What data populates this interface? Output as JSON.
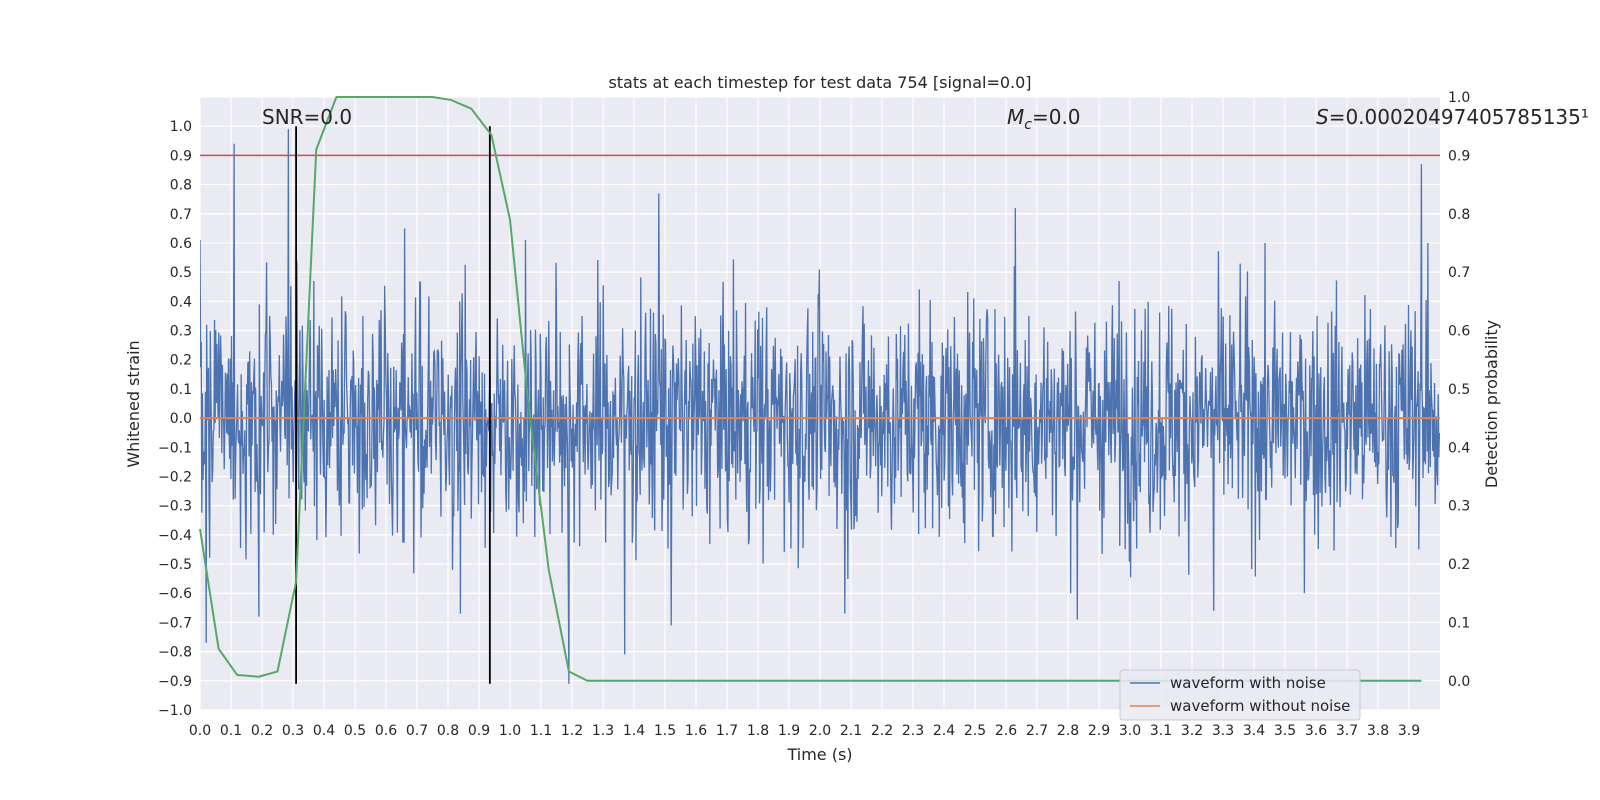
{
  "chart_data": {
    "type": "line",
    "title": "stats at each timestep for test data 754 [signal=0.0]",
    "xlabel": "Time (s)",
    "ylabel": "Whitened strain",
    "y2label": "Detection probability",
    "xlim": [
      0.0,
      4.0
    ],
    "ylim": [
      -1.0,
      1.1
    ],
    "y2lim": [
      -0.05,
      1.0
    ],
    "x_ticks": [
      0.0,
      0.1,
      0.2,
      0.3,
      0.4,
      0.5,
      0.6,
      0.7,
      0.8,
      0.9,
      1.0,
      1.1,
      1.2,
      1.3,
      1.4,
      1.5,
      1.6,
      1.7,
      1.8,
      1.9,
      2.0,
      2.1,
      2.2,
      2.3,
      2.4,
      2.5,
      2.6,
      2.7,
      2.8,
      2.9,
      3.0,
      3.1,
      3.2,
      3.3,
      3.4,
      3.5,
      3.6,
      3.7,
      3.8,
      3.9
    ],
    "y_ticks": [
      -1.0,
      -0.9,
      -0.8,
      -0.7,
      -0.6,
      -0.5,
      -0.4,
      -0.3,
      -0.2,
      -0.1,
      0.0,
      0.1,
      0.2,
      0.3,
      0.4,
      0.5,
      0.6,
      0.7,
      0.8,
      0.9,
      1.0
    ],
    "y2_ticks": [
      0.0,
      0.1,
      0.2,
      0.3,
      0.4,
      0.5,
      0.6,
      0.7,
      0.8,
      0.9,
      1.0
    ],
    "annotations": {
      "snr": "SNR=0.0",
      "mc_symbol": "M",
      "mc_sub": "c",
      "mc_value": "=0.0",
      "s_symbol": "S",
      "s_value": "=0.00020497405785135¹"
    },
    "series": [
      {
        "name": "waveform with noise",
        "color": "#4c72b0",
        "axis": "left",
        "note": "dense whitened noise, roughly within -0.6..0.6 with spikes",
        "spikes": [
          {
            "x": 0.0,
            "y": 0.61
          },
          {
            "x": 0.02,
            "y": -0.77
          },
          {
            "x": 0.11,
            "y": 0.94
          },
          {
            "x": 0.19,
            "y": -0.68
          },
          {
            "x": 0.285,
            "y": 0.99
          },
          {
            "x": 0.31,
            "y": -0.8
          },
          {
            "x": 0.66,
            "y": 0.65
          },
          {
            "x": 0.84,
            "y": -0.67
          },
          {
            "x": 1.05,
            "y": 0.61
          },
          {
            "x": 1.19,
            "y": -0.91
          },
          {
            "x": 1.37,
            "y": -0.81
          },
          {
            "x": 1.48,
            "y": 0.77
          },
          {
            "x": 1.52,
            "y": -0.71
          },
          {
            "x": 2.08,
            "y": -0.67
          },
          {
            "x": 2.63,
            "y": 0.72
          },
          {
            "x": 2.83,
            "y": -0.69
          },
          {
            "x": 3.27,
            "y": -0.66
          },
          {
            "x": 3.94,
            "y": 0.87
          }
        ]
      },
      {
        "name": "waveform without noise",
        "color": "#dd8452",
        "axis": "left",
        "x": [
          0.0,
          4.0
        ],
        "y": [
          0.0,
          0.0
        ]
      },
      {
        "name": "detection probability",
        "color": "#55a868",
        "axis": "right",
        "x": [
          0.0,
          0.06,
          0.12,
          0.19,
          0.25,
          0.31,
          0.375,
          0.44,
          0.5,
          0.56,
          0.625,
          0.69,
          0.75,
          0.81,
          0.875,
          0.94,
          1.0,
          1.06,
          1.125,
          1.19,
          1.25,
          1.31,
          1.375,
          3.94
        ],
        "y": [
          0.26,
          0.055,
          0.01,
          0.007,
          0.016,
          0.17,
          0.91,
          1.0,
          1.0,
          1.0,
          1.0,
          1.0,
          1.0,
          0.995,
          0.98,
          0.935,
          0.79,
          0.47,
          0.19,
          0.016,
          0.0,
          0.0,
          0.0,
          0.0
        ]
      }
    ],
    "threshold_line": {
      "value": 0.9,
      "axis": "right",
      "color": "#c44e52"
    },
    "vertical_lines": [
      {
        "x": 0.31,
        "y_from": -0.91,
        "y_to": 1.0,
        "color": "#000000"
      },
      {
        "x": 0.935,
        "y_from": -0.91,
        "y_to": 1.0,
        "color": "#000000"
      }
    ],
    "legend": {
      "location": "lower-right",
      "entries": [
        {
          "label": "waveform with noise",
          "color": "#4c72b0"
        },
        {
          "label": "waveform without noise",
          "color": "#dd8452"
        }
      ]
    }
  }
}
